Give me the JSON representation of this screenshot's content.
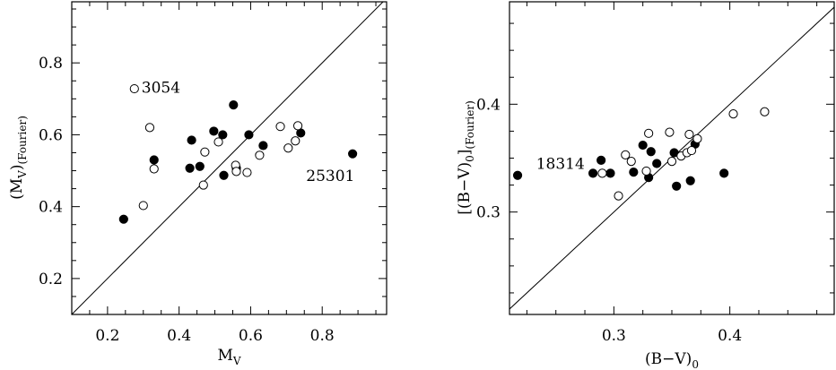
{
  "chart_data": [
    {
      "type": "scatter",
      "xlabel": "M",
      "xlabel_sub": "V",
      "ylabel": "(M",
      "ylabel_sub": "V",
      "ylabel_close": ")",
      "ylabel_sub2": "(Fourier)",
      "xlim": [
        0.1,
        0.98
      ],
      "ylim": [
        0.1,
        0.97
      ],
      "xticks": [
        0.2,
        0.4,
        0.6,
        0.8
      ],
      "yticks": [
        0.2,
        0.4,
        0.6,
        0.8
      ],
      "xtick_labels": [
        "0.2",
        "0.4",
        "0.6",
        "0.8"
      ],
      "ytick_labels": [
        "0.2",
        "0.4",
        "0.6",
        "0.8"
      ],
      "identity_line": true,
      "series": [
        {
          "marker": "filled",
          "points": [
            [
              0.245,
              0.365
            ],
            [
              0.33,
              0.53
            ],
            [
              0.43,
              0.507
            ],
            [
              0.435,
              0.585
            ],
            [
              0.458,
              0.512
            ],
            [
              0.497,
              0.61
            ],
            [
              0.522,
              0.6
            ],
            [
              0.525,
              0.487
            ],
            [
              0.552,
              0.683
            ],
            [
              0.56,
              0.507
            ],
            [
              0.595,
              0.6
            ],
            [
              0.635,
              0.57
            ],
            [
              0.74,
              0.605
            ],
            [
              0.885,
              0.547
            ]
          ]
        },
        {
          "marker": "open",
          "points": [
            [
              0.275,
              0.728
            ],
            [
              0.3,
              0.403
            ],
            [
              0.318,
              0.62
            ],
            [
              0.33,
              0.505
            ],
            [
              0.468,
              0.46
            ],
            [
              0.472,
              0.552
            ],
            [
              0.51,
              0.58
            ],
            [
              0.558,
              0.515
            ],
            [
              0.56,
              0.498
            ],
            [
              0.59,
              0.495
            ],
            [
              0.625,
              0.543
            ],
            [
              0.683,
              0.623
            ],
            [
              0.705,
              0.563
            ],
            [
              0.725,
              0.583
            ],
            [
              0.732,
              0.625
            ]
          ]
        }
      ],
      "annotations": [
        {
          "text": "3054",
          "x": 0.295,
          "y": 0.732
        },
        {
          "text": "25301",
          "x": 0.755,
          "y": 0.487
        }
      ]
    },
    {
      "type": "scatter",
      "xlabel": "(B−V)",
      "xlabel_sub": "0",
      "ylabel": "[(B−V)",
      "ylabel_sub": "0",
      "ylabel_close": "]",
      "ylabel_sub2": "(Fourier)",
      "xlim": [
        0.21,
        0.49
      ],
      "ylim": [
        0.205,
        0.495
      ],
      "xticks": [
        0.3,
        0.4
      ],
      "yticks": [
        0.3,
        0.4
      ],
      "xtick_labels": [
        "0.3",
        "0.4"
      ],
      "ytick_labels": [
        "0.3",
        "0.4"
      ],
      "identity_line": true,
      "series": [
        {
          "marker": "filled",
          "points": [
            [
              0.217,
              0.334
            ],
            [
              0.282,
              0.336
            ],
            [
              0.289,
              0.348
            ],
            [
              0.297,
              0.336
            ],
            [
              0.317,
              0.337
            ],
            [
              0.325,
              0.362
            ],
            [
              0.33,
              0.332
            ],
            [
              0.332,
              0.356
            ],
            [
              0.337,
              0.345
            ],
            [
              0.352,
              0.355
            ],
            [
              0.354,
              0.324
            ],
            [
              0.366,
              0.329
            ],
            [
              0.37,
              0.363
            ],
            [
              0.395,
              0.336
            ]
          ]
        },
        {
          "marker": "open",
          "points": [
            [
              0.29,
              0.336
            ],
            [
              0.304,
              0.315
            ],
            [
              0.31,
              0.353
            ],
            [
              0.315,
              0.347
            ],
            [
              0.328,
              0.338
            ],
            [
              0.33,
              0.373
            ],
            [
              0.348,
              0.374
            ],
            [
              0.35,
              0.347
            ],
            [
              0.358,
              0.352
            ],
            [
              0.363,
              0.355
            ],
            [
              0.365,
              0.372
            ],
            [
              0.367,
              0.357
            ],
            [
              0.372,
              0.368
            ],
            [
              0.403,
              0.391
            ],
            [
              0.43,
              0.393
            ]
          ]
        }
      ],
      "annotations": [
        {
          "text": "18314",
          "x": 0.233,
          "y": 0.345
        }
      ]
    }
  ]
}
